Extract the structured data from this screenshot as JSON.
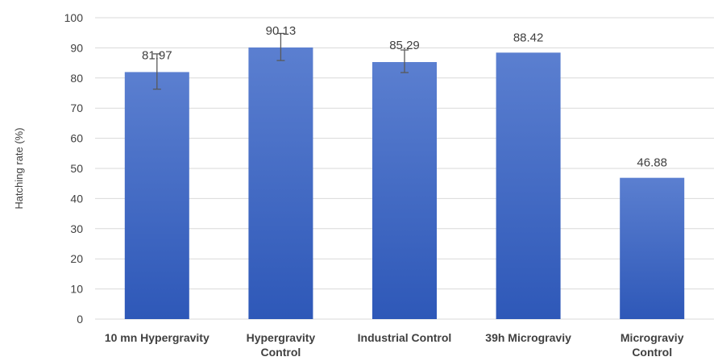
{
  "chart_data": {
    "type": "bar",
    "categories": [
      "10 mn Hypergravity",
      "Hypergravity Control",
      "Industrial Control",
      "39h  Micrograviy",
      "Microgravity Control"
    ],
    "category_lines": [
      [
        "10 mn Hypergravity"
      ],
      [
        "Hypergravity",
        "Control"
      ],
      [
        "Industrial Control"
      ],
      [
        "39h  Micrograviy"
      ],
      [
        "Micrograviy",
        "Control"
      ]
    ],
    "values": [
      81.97,
      90.13,
      85.29,
      88.42,
      46.88
    ],
    "value_labels": [
      "81.97",
      "90.13",
      "85.29",
      "88.42",
      "46.88"
    ],
    "error_low": [
      76.3,
      85.8,
      81.8,
      null,
      null
    ],
    "error_high": [
      88.0,
      94.8,
      89.3,
      null,
      null
    ],
    "ylabel": "Hatching rate  (%)",
    "ylim": [
      0,
      100
    ],
    "yticks": [
      0,
      10,
      20,
      30,
      40,
      50,
      60,
      70,
      80,
      90,
      100
    ],
    "grid": true,
    "legend": "none",
    "colors": {
      "bar_top": "#5b7fd0",
      "bar_bottom": "#2e58b8",
      "grid": "#d9d9d9",
      "text": "#404040",
      "error_bar": "#595959"
    }
  }
}
